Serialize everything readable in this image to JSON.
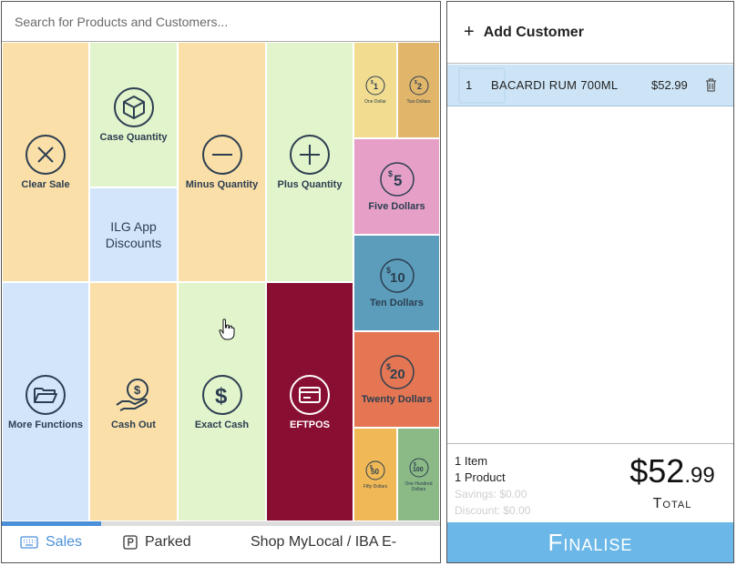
{
  "search": {
    "placeholder": "Search for Products and Customers..."
  },
  "tiles": {
    "clear_sale": "Clear Sale",
    "case_quantity": "Case Quantity",
    "ilg_app_discounts": "ILG App Discounts",
    "minus_quantity": "Minus Quantity",
    "plus_quantity": "Plus Quantity",
    "one_dollar": "One Dollar",
    "two_dollars": "Two Dollars",
    "five_dollars": "Five Dollars",
    "ten_dollars": "Ten Dollars",
    "twenty_dollars": "Twenty Dollars",
    "fifty_dollars": "Fifty Dollars",
    "one_hundred_dollars": "One Hundred Dollars",
    "more_functions": "More Functions",
    "cash_out": "Cash Out",
    "exact_cash": "Exact Cash",
    "eftpos": "EFTPOS"
  },
  "coin_labels": {
    "one": "1",
    "two": "2",
    "five": "5",
    "ten": "10",
    "twenty": "20",
    "fifty": "50",
    "hundred": "100",
    "symbol": "$"
  },
  "tabs": [
    {
      "label": "Sales",
      "active": true
    },
    {
      "label": "Parked"
    },
    {
      "label": "Shop MyLocal / IBA E-"
    }
  ],
  "customer": {
    "add_label": "Add Customer"
  },
  "cart": [
    {
      "qty": "1",
      "name": "BACARDI RUM 700ML",
      "price": "$52.99"
    }
  ],
  "summary": {
    "items": "1 Item",
    "products": "1 Product",
    "savings": "Savings: $0.00",
    "discount": "Discount: $0.00",
    "total_dollars": "$52",
    "total_cents": ".99",
    "total_label": "Total"
  },
  "finalise_label": "Finalise",
  "colors": {
    "peach": "#fadfa8",
    "light_green": "#e2f4cc",
    "light_blue": "#d2e5fb",
    "yellow": "#f1dc8f",
    "gold": "#e1b56a",
    "pink": "#e6a0c8",
    "teal": "#5b9dbb",
    "coral": "#e47653",
    "orange": "#f0b956",
    "green": "#8bba86",
    "maroon": "#890f32",
    "accent": "#4a90d9",
    "finalise": "#6bb8e8"
  }
}
